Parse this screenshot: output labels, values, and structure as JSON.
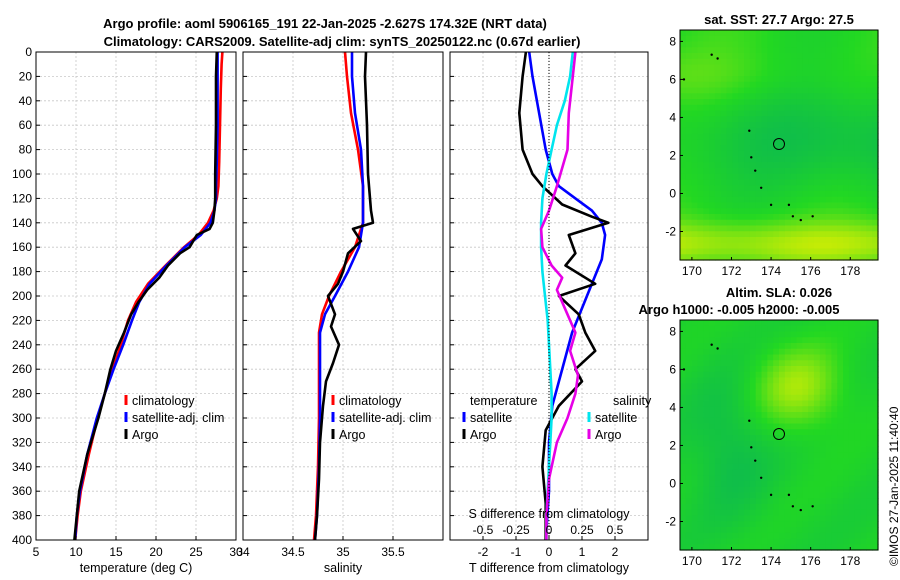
{
  "figure": {
    "title_line1": "Argo profile: aoml 5906165_191 22-Jan-2025 -2.627S 174.32E (NRT data)",
    "title_line2": "Climatology: CARS2009. Satellite-adj clim: synTS_20250122.nc (0.67d earlier)",
    "timestamp": "©IMOS 27-Jan-2025 11:40:40"
  },
  "colors": {
    "climatology": "#ff0000",
    "satellite": "#0000ff",
    "argo": "#000000",
    "s_satellite": "#00e5ee",
    "s_argo": "#e600e6",
    "map_low": "#00a86b",
    "map_mid": "#22d822",
    "map_high": "#e6f000"
  },
  "chart_data": [
    {
      "type": "line",
      "name": "temperature-profile",
      "xlabel": "temperature (deg C)",
      "ylabel": "",
      "xlim": [
        5,
        30
      ],
      "ylim": [
        400,
        0
      ],
      "xticks": [
        5,
        10,
        15,
        20,
        25,
        30
      ],
      "yticks": [
        0,
        20,
        40,
        60,
        80,
        100,
        120,
        140,
        160,
        180,
        200,
        220,
        240,
        260,
        280,
        300,
        320,
        340,
        360,
        380,
        400
      ],
      "grid": true,
      "legend": [
        "climatology",
        "satellite-adj. clim",
        "Argo"
      ],
      "legend_location": "middle-right",
      "series": [
        {
          "name": "climatology",
          "color": "#ff0000",
          "x": [
            28.3,
            28.2,
            28.1,
            28.0,
            27.9,
            27.8,
            27.6,
            27.2,
            26.5,
            25.3,
            23.5,
            21.2,
            19.0,
            17.5,
            16.5,
            15.6,
            14.6,
            13.6,
            12.7,
            11.6,
            10.6,
            10.2,
            9.9
          ],
          "depth": [
            0,
            10,
            30,
            60,
            90,
            110,
            120,
            130,
            140,
            150,
            160,
            175,
            190,
            205,
            220,
            240,
            260,
            280,
            300,
            330,
            360,
            380,
            400
          ]
        },
        {
          "name": "satellite-adj. clim",
          "color": "#0000ff",
          "x": [
            27.7,
            27.7,
            27.7,
            27.6,
            27.5,
            27.5,
            27.3,
            26.8,
            25.6,
            23.6,
            21.3,
            19.2,
            17.9,
            17.0,
            15.9,
            14.7,
            13.6,
            12.6,
            11.4,
            10.5,
            10.1,
            9.9
          ],
          "depth": [
            0,
            20,
            60,
            90,
            110,
            120,
            130,
            140,
            150,
            160,
            175,
            190,
            205,
            220,
            240,
            260,
            280,
            300,
            330,
            360,
            380,
            400
          ]
        },
        {
          "name": "Argo",
          "color": "#000000",
          "x": [
            27.6,
            27.5,
            27.5,
            27.4,
            27.4,
            27.3,
            27.1,
            26.7,
            25.1,
            24.2,
            23.0,
            21.5,
            20.4,
            18.9,
            17.8,
            16.9,
            16.0,
            15.0,
            14.3,
            13.6,
            12.8,
            11.4,
            10.4,
            9.8
          ],
          "depth": [
            0,
            20,
            60,
            100,
            120,
            130,
            140,
            145,
            150,
            160,
            165,
            175,
            185,
            195,
            205,
            215,
            230,
            245,
            260,
            280,
            300,
            330,
            360,
            400
          ]
        }
      ]
    },
    {
      "type": "line",
      "name": "salinity-profile",
      "xlabel": "salinity",
      "xlim": [
        34,
        36
      ],
      "ylim": [
        400,
        0
      ],
      "xticks": [
        34,
        34.5,
        35,
        35.5
      ],
      "grid": true,
      "legend": [
        "climatology",
        "satellite-adj. clim",
        "Argo"
      ],
      "legend_location": "middle-right",
      "series": [
        {
          "name": "climatology",
          "color": "#ff0000",
          "x": [
            35.02,
            35.04,
            35.08,
            35.15,
            35.2,
            35.2,
            35.12,
            34.98,
            34.86,
            34.79,
            34.76,
            34.76,
            34.76,
            34.75,
            34.73,
            34.71
          ],
          "depth": [
            0,
            20,
            50,
            80,
            110,
            140,
            160,
            180,
            200,
            215,
            230,
            260,
            300,
            340,
            380,
            400
          ]
        },
        {
          "name": "satellite-adj. clim",
          "color": "#0000ff",
          "x": [
            35.09,
            35.09,
            35.12,
            35.18,
            35.2,
            35.2,
            35.16,
            35.05,
            34.92,
            34.82,
            34.77,
            34.77,
            34.77,
            34.76,
            34.74,
            34.72
          ],
          "depth": [
            0,
            20,
            50,
            80,
            110,
            140,
            160,
            180,
            200,
            215,
            230,
            260,
            300,
            340,
            380,
            400
          ]
        },
        {
          "name": "Argo",
          "color": "#000000",
          "x": [
            35.23,
            35.22,
            35.24,
            35.25,
            35.28,
            35.3,
            35.1,
            35.18,
            35.05,
            35.0,
            34.95,
            34.85,
            34.92,
            34.88,
            34.96,
            34.9,
            34.83,
            34.8,
            34.77,
            34.76,
            34.74,
            34.72
          ],
          "depth": [
            0,
            20,
            60,
            100,
            130,
            140,
            145,
            155,
            165,
            180,
            190,
            200,
            215,
            225,
            240,
            255,
            270,
            290,
            320,
            350,
            380,
            400
          ]
        }
      ]
    },
    {
      "type": "line",
      "name": "difference-profile",
      "xlabel": "T difference from climatology",
      "xlabel_top": "S difference from climatology",
      "xlim": [
        -3,
        3
      ],
      "ylim": [
        400,
        0
      ],
      "xticks": [
        -2,
        -1,
        0,
        1,
        2
      ],
      "xticks_top": [
        -0.5,
        -0.25,
        0,
        0.25,
        0.5
      ],
      "grid": true,
      "legend_t_title": "temperature",
      "legend_s_title": "salinity",
      "legend_t": [
        "satellite",
        "Argo"
      ],
      "legend_s": [
        "satellite",
        "Argo"
      ],
      "series": [
        {
          "name": "T satellite",
          "color": "#0000ff",
          "x": [
            -0.6,
            -0.5,
            -0.3,
            -0.1,
            0.1,
            0.3,
            0.8,
            1.3,
            1.6,
            1.7,
            1.6,
            1.3,
            1.0,
            0.7,
            0.5,
            0.3,
            0.1,
            0.0,
            0.0,
            -0.1
          ],
          "depth": [
            0,
            20,
            50,
            80,
            100,
            110,
            120,
            130,
            140,
            150,
            170,
            190,
            210,
            230,
            250,
            270,
            290,
            320,
            360,
            400
          ]
        },
        {
          "name": "T Argo",
          "color": "#000000",
          "x": [
            -0.7,
            -0.8,
            -0.9,
            -0.8,
            -0.5,
            -0.2,
            0.4,
            1.3,
            1.8,
            0.6,
            0.8,
            0.5,
            1.4,
            0.3,
            0.9,
            1.1,
            1.4,
            0.8,
            1.0,
            0.3,
            -0.1,
            -0.2,
            -0.1,
            -0.1
          ],
          "depth": [
            0,
            20,
            50,
            80,
            100,
            110,
            125,
            135,
            140,
            150,
            165,
            175,
            190,
            200,
            215,
            230,
            245,
            260,
            270,
            290,
            310,
            340,
            370,
            400
          ]
        },
        {
          "name": "S satellite",
          "color": "#00e5ee",
          "x": [
            0.18,
            0.16,
            0.12,
            0.06,
            0.02,
            -0.02,
            -0.05,
            -0.06,
            -0.06,
            -0.05,
            -0.03,
            -0.01,
            0.0,
            0.01,
            0.02,
            0.02,
            0.01,
            0.0,
            -0.01,
            -0.02,
            -0.02
          ],
          "depth": [
            0,
            20,
            40,
            60,
            80,
            100,
            120,
            140,
            160,
            180,
            200,
            220,
            240,
            260,
            280,
            300,
            320,
            340,
            360,
            380,
            400
          ]
        },
        {
          "name": "S Argo",
          "color": "#e600e6",
          "x": [
            0.2,
            0.18,
            0.15,
            0.14,
            0.06,
            0.0,
            -0.06,
            -0.05,
            0.02,
            0.1,
            0.06,
            0.12,
            0.2,
            0.16,
            0.22,
            0.2,
            0.14,
            0.06,
            0.0,
            -0.02,
            -0.02
          ],
          "depth": [
            0,
            20,
            50,
            80,
            110,
            130,
            145,
            160,
            175,
            185,
            195,
            210,
            230,
            245,
            265,
            280,
            300,
            320,
            350,
            380,
            400
          ]
        }
      ]
    },
    {
      "type": "heatmap",
      "name": "sst-map",
      "title": "sat. SST: 27.7 Argo: 27.5",
      "xlim": [
        169.4,
        179.4
      ],
      "ylim": [
        -3.5,
        8.6
      ],
      "xticks": [
        170,
        172,
        174,
        176,
        178
      ],
      "yticks": [
        -2,
        0,
        2,
        4,
        6,
        8
      ],
      "marker": {
        "lon": 174.4,
        "lat": 2.6
      },
      "colors": [
        "#00a86b",
        "#22d822",
        "#e6f000"
      ]
    },
    {
      "type": "heatmap",
      "name": "sla-map",
      "title_line1": "Altim. SLA: 0.026",
      "title_line2": "Argo h1000: -0.005 h2000: -0.005",
      "xlim": [
        169.4,
        179.4
      ],
      "ylim": [
        -3.5,
        8.6
      ],
      "xticks": [
        170,
        172,
        174,
        176,
        178
      ],
      "yticks": [
        -2,
        0,
        2,
        4,
        6,
        8
      ],
      "marker": {
        "lon": 174.4,
        "lat": 2.6
      },
      "colors": [
        "#00a86b",
        "#22d822",
        "#e6f000"
      ]
    }
  ]
}
